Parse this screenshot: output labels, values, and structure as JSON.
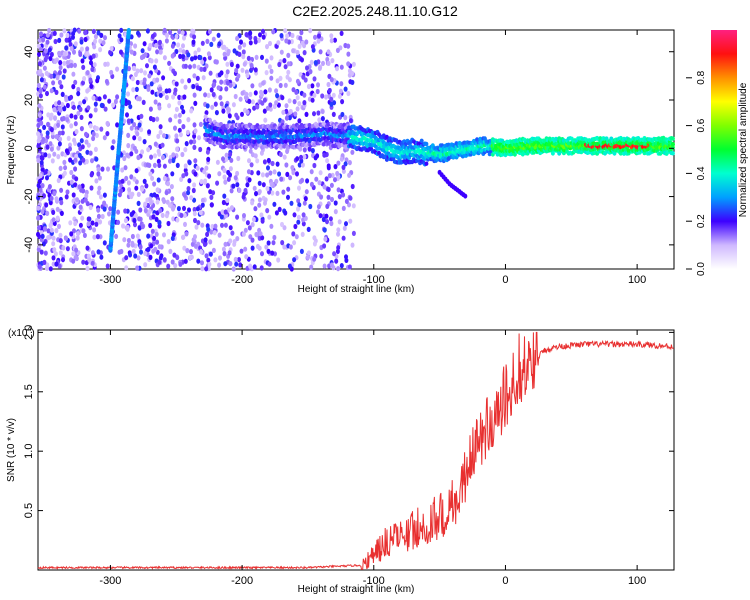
{
  "title": "C2E2.2025.248.11.10.G12",
  "colors": {
    "snr_line": "#e83030",
    "axis": "#000000"
  },
  "chart_data": [
    {
      "type": "heatmap",
      "xlabel": "Height of straight line (km)",
      "ylabel": "Frequency (Hz)",
      "xlim": [
        -355,
        128
      ],
      "ylim": [
        -50,
        49
      ],
      "xticks": [
        -300,
        -200,
        -100,
        0,
        100
      ],
      "yticks": [
        -40,
        -20,
        0,
        20,
        40
      ],
      "colorbar": {
        "label": "Normalized spectral amplitude",
        "range": [
          0,
          1
        ],
        "ticks": [
          0.0,
          0.2,
          0.4,
          0.6,
          0.8
        ],
        "tick_labels": [
          "0.0",
          "0.2",
          "0.4",
          "0.6",
          "0.8"
        ]
      },
      "trace": {
        "ridge": [
          [
            -228,
            8
          ],
          [
            -215,
            5
          ],
          [
            -200,
            5
          ],
          [
            -180,
            5
          ],
          [
            -160,
            5
          ],
          [
            -140,
            6
          ],
          [
            -120,
            5
          ],
          [
            -100,
            3
          ],
          [
            -90,
            0
          ],
          [
            -80,
            -2
          ],
          [
            -70,
            -1
          ],
          [
            -60,
            -2
          ],
          [
            -45,
            -2
          ],
          [
            -30,
            0
          ],
          [
            -15,
            1
          ],
          [
            0,
            0
          ],
          [
            20,
            1
          ],
          [
            50,
            1
          ],
          [
            80,
            1
          ],
          [
            100,
            1
          ],
          [
            128,
            1
          ]
        ],
        "steep_line": [
          [
            -300,
            -42
          ],
          [
            -286,
            49
          ]
        ],
        "faint_branch": [
          [
            -50,
            -10
          ],
          [
            -42,
            -15
          ],
          [
            -30,
            -20
          ]
        ]
      }
    },
    {
      "type": "line",
      "xlabel": "Height of straight line (km)",
      "ylabel": "SNR (10 * v/v)",
      "y_scale_label": "(x10",
      "y_scale_exp": "4",
      "y_scale_close": ")",
      "xlim": [
        -355,
        128
      ],
      "ylim": [
        0,
        2.02
      ],
      "xticks": [
        -300,
        -200,
        -100,
        0,
        100
      ],
      "yticks": [
        0.5,
        1.0,
        1.5,
        2.0
      ],
      "ytick_labels": [
        "0.5",
        "1.0",
        "1.5",
        "2.0"
      ],
      "series": [
        {
          "name": "SNR",
          "x": [
            -355,
            -300,
            -250,
            -200,
            -150,
            -110,
            -100,
            -90,
            -80,
            -70,
            -60,
            -50,
            -40,
            -30,
            -20,
            -10,
            0,
            10,
            20,
            30,
            40,
            60,
            80,
            100,
            128
          ],
          "y": [
            0.02,
            0.02,
            0.02,
            0.02,
            0.02,
            0.04,
            0.1,
            0.2,
            0.25,
            0.3,
            0.33,
            0.4,
            0.5,
            0.75,
            1.05,
            1.2,
            1.4,
            1.6,
            1.75,
            1.85,
            1.88,
            1.9,
            1.9,
            1.9,
            1.88
          ]
        }
      ]
    }
  ]
}
